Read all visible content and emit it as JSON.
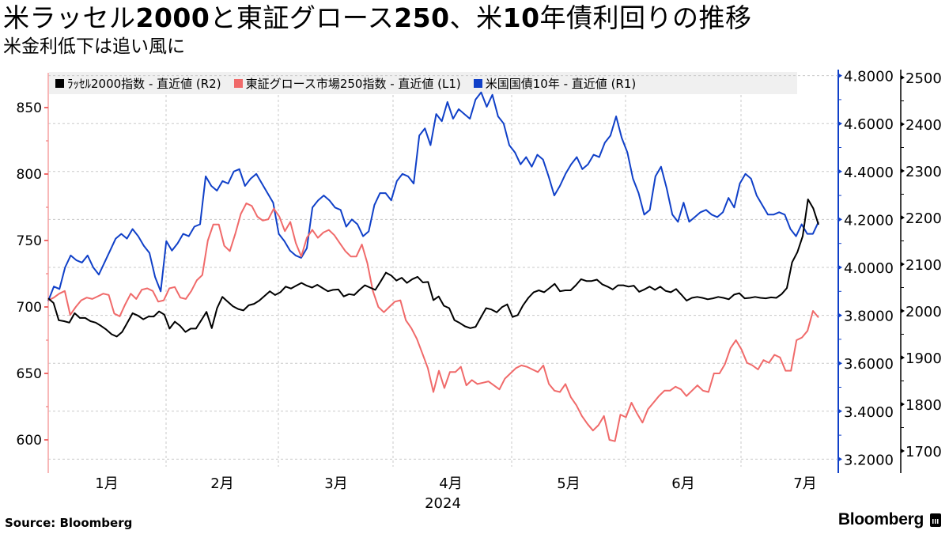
{
  "header": {
    "title_parts": [
      {
        "text": "米ラッセル",
        "bold": false
      },
      {
        "text": "2000",
        "bold": true
      },
      {
        "text": "と東証グロース",
        "bold": false
      },
      {
        "text": "250",
        "bold": true
      },
      {
        "text": "、米",
        "bold": false
      },
      {
        "text": "10",
        "bold": true
      },
      {
        "text": "年債利回りの推移",
        "bold": false
      }
    ],
    "title": "米ラッセル2000と東証グロース250、米10年債利回りの推移",
    "subtitle": "米金利低下は追い風に"
  },
  "legend": [
    {
      "label": "ﾗｯｾﾙ2000指数 - 直近値 (R2)",
      "color": "#000000"
    },
    {
      "label": "東証グロース市場250指数 - 直近値 (L1)",
      "color": "#f06a6a"
    },
    {
      "label": "米国国債10年 - 直近値 (R1)",
      "color": "#1040c8"
    }
  ],
  "footer": {
    "source": "Source:  Bloomberg",
    "brand": "Bloomberg"
  },
  "colors": {
    "russell": "#000000",
    "tse_growth": "#f06a6a",
    "ust10y": "#1040c8",
    "grid": "#c8c8c8",
    "legend_bg": "#f0f0f0"
  },
  "chart_data": {
    "type": "line",
    "title": "米ラッセル2000と東証グロース250、米10年債利回りの推移",
    "subtitle": "米金利低下は追い風に",
    "x_ticks": [
      "1月",
      "2月",
      "3月",
      "4月",
      "5月",
      "6月",
      "7月"
    ],
    "x_year_label": "2024",
    "xlabel": "",
    "axes": {
      "L1": {
        "ticks": [
          600,
          650,
          700,
          750,
          800,
          850
        ],
        "range": [
          580,
          870
        ],
        "color": "#f06a6a"
      },
      "R1": {
        "ticks": [
          "3.2000",
          "3.4000",
          "3.6000",
          "3.8000",
          "4.0000",
          "4.2000",
          "4.4000",
          "4.6000",
          "4.8000"
        ],
        "range": [
          3.19,
          4.85
        ],
        "color": "#1040c8"
      },
      "R2": {
        "ticks": [
          1700,
          1800,
          1900,
          2000,
          2100,
          2200,
          2300,
          2400,
          2500
        ],
        "range": [
          1680,
          2510
        ],
        "color": "#000000"
      }
    },
    "grid": true,
    "legend_position": "top",
    "series": [
      {
        "name": "ﾗｯｾﾙ2000指数 - 直近値 (R2)",
        "axis": "R2",
        "color": "#000000",
        "values": [
          2027,
          2017,
          1980,
          1978,
          1975,
          1995,
          1985,
          1985,
          1978,
          1975,
          1968,
          1960,
          1950,
          1945,
          1955,
          1975,
          1995,
          1990,
          1982,
          1988,
          1988,
          1999,
          1992,
          1962,
          1977,
          1968,
          1955,
          1962,
          1962,
          1980,
          1998,
          1963,
          2006,
          2030,
          2020,
          2010,
          2004,
          2001,
          2012,
          2015,
          2022,
          2032,
          2042,
          2034,
          2040,
          2052,
          2048,
          2054,
          2060,
          2054,
          2050,
          2056,
          2049,
          2042,
          2045,
          2046,
          2031,
          2036,
          2034,
          2045,
          2055,
          2050,
          2045,
          2063,
          2082,
          2076,
          2065,
          2071,
          2060,
          2068,
          2073,
          2061,
          2062,
          2023,
          2031,
          2011,
          2006,
          1980,
          1974,
          1967,
          1963,
          1966,
          1986,
          2006,
          2003,
          1997,
          2008,
          2014,
          1987,
          1991,
          2012,
          2028,
          2040,
          2044,
          2040,
          2049,
          2058,
          2042,
          2044,
          2044,
          2055,
          2068,
          2064,
          2064,
          2067,
          2057,
          2052,
          2046,
          2055,
          2055,
          2052,
          2054,
          2041,
          2046,
          2052,
          2045,
          2052,
          2043,
          2040,
          2047,
          2035,
          2022,
          2028,
          2030,
          2028,
          2025,
          2027,
          2030,
          2028,
          2025,
          2035,
          2038,
          2027,
          2028,
          2030,
          2028,
          2027,
          2029,
          2028,
          2036,
          2049,
          2104,
          2126,
          2160,
          2239,
          2220,
          2185
        ]
      },
      {
        "name": "東証グロース市場250指数 - 直近値 (L1)",
        "axis": "L1",
        "color": "#f06a6a",
        "values": [
          705,
          707,
          710,
          712,
          694,
          700,
          705,
          707,
          706,
          708,
          710,
          709,
          695,
          693,
          702,
          710,
          706,
          713,
          714,
          712,
          704,
          705,
          714,
          715,
          707,
          706,
          712,
          720,
          724,
          750,
          762,
          762,
          746,
          742,
          755,
          770,
          778,
          776,
          768,
          765,
          766,
          774,
          768,
          757,
          764,
          748,
          738,
          752,
          758,
          752,
          756,
          758,
          754,
          748,
          742,
          738,
          738,
          747,
          733,
          712,
          700,
          696,
          700,
          704,
          705,
          690,
          684,
          676,
          665,
          654,
          636,
          652,
          639,
          651,
          651,
          655,
          641,
          645,
          642,
          643,
          644,
          641,
          638,
          646,
          650,
          654,
          656,
          655,
          653,
          651,
          656,
          642,
          637,
          636,
          642,
          632,
          626,
          618,
          612,
          607,
          611,
          618,
          600,
          599,
          619,
          617,
          628,
          620,
          613,
          623,
          628,
          633,
          637,
          637,
          640,
          638,
          633,
          637,
          641,
          637,
          636,
          650,
          650,
          657,
          669,
          675,
          668,
          658,
          656,
          653,
          660,
          658,
          664,
          662,
          652,
          652,
          675,
          677,
          682,
          697,
          692
        ]
      },
      {
        "name": "米国国債10年 - 直近値 (R1)",
        "axis": "R1",
        "color": "#1040c8",
        "values": [
          3.86,
          3.92,
          3.91,
          4.0,
          4.05,
          4.03,
          4.02,
          4.05,
          4.0,
          3.97,
          4.02,
          4.07,
          4.12,
          4.14,
          4.12,
          4.16,
          4.13,
          4.09,
          4.06,
          3.96,
          3.9,
          4.11,
          4.07,
          4.1,
          4.14,
          4.13,
          4.17,
          4.18,
          4.38,
          4.34,
          4.32,
          4.36,
          4.35,
          4.4,
          4.41,
          4.34,
          4.37,
          4.39,
          4.35,
          4.31,
          4.27,
          4.14,
          4.11,
          4.07,
          4.05,
          4.04,
          4.08,
          4.25,
          4.28,
          4.3,
          4.28,
          4.25,
          4.24,
          4.17,
          4.2,
          4.18,
          4.13,
          4.15,
          4.26,
          4.31,
          4.31,
          4.28,
          4.36,
          4.39,
          4.38,
          4.35,
          4.55,
          4.58,
          4.51,
          4.64,
          4.61,
          4.69,
          4.62,
          4.66,
          4.64,
          4.62,
          4.7,
          4.73,
          4.67,
          4.72,
          4.63,
          4.6,
          4.51,
          4.48,
          4.43,
          4.46,
          4.42,
          4.47,
          4.45,
          4.38,
          4.3,
          4.34,
          4.39,
          4.43,
          4.46,
          4.41,
          4.43,
          4.47,
          4.46,
          4.52,
          4.55,
          4.63,
          4.54,
          4.48,
          4.37,
          4.31,
          4.22,
          4.24,
          4.38,
          4.42,
          4.33,
          4.22,
          4.19,
          4.27,
          4.19,
          4.21,
          4.23,
          4.24,
          4.22,
          4.21,
          4.23,
          4.29,
          4.25,
          4.35,
          4.39,
          4.37,
          4.3,
          4.26,
          4.22,
          4.22,
          4.23,
          4.22,
          4.16,
          4.13,
          4.18,
          4.14,
          4.14,
          4.19
        ]
      }
    ]
  }
}
